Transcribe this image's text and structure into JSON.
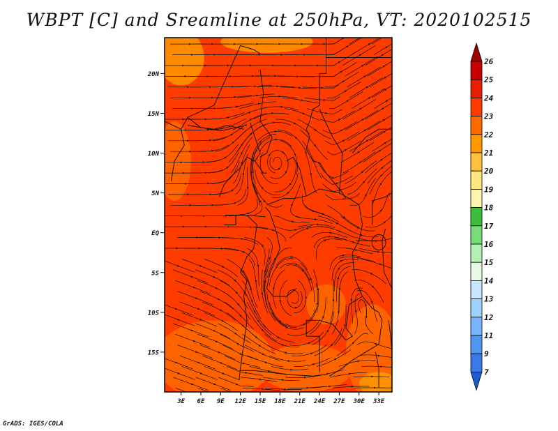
{
  "title": "WBPT [C] and Sreamline at 250hPa, VT: 2020102515",
  "footer": "GrADS: IGES/COLA",
  "map": {
    "variable": "WBPT",
    "units": "C",
    "level_hpa": 250,
    "valid_time": "2020102515",
    "lat_labels": [
      "20N",
      "15N",
      "10N",
      "5N",
      "EQ",
      "5S",
      "10S",
      "15S"
    ],
    "lon_labels": [
      "3E",
      "6E",
      "9E",
      "12E",
      "15E",
      "18E",
      "21E",
      "24E",
      "27E",
      "30E",
      "33E"
    ],
    "lat_range": [
      -20,
      24.5
    ],
    "lon_range": [
      0.5,
      35
    ],
    "colors": {
      "field_main": "#ff3c00",
      "field_warm": "#ff6a00",
      "field_edge": "#ff9800",
      "lines": "#111111"
    }
  },
  "colorbar": {
    "labels": [
      "26",
      "25",
      "24",
      "23",
      "22",
      "21",
      "20",
      "19",
      "18",
      "17",
      "16",
      "15",
      "14",
      "13",
      "12",
      "11",
      "9",
      "7"
    ],
    "colors": [
      "#a00000",
      "#c80000",
      "#e62000",
      "#ff3c00",
      "#ff6a00",
      "#ff9800",
      "#ffbf3f",
      "#ffe680",
      "#fff5b0",
      "#3cbe3c",
      "#78dc78",
      "#b4f0b4",
      "#e6fae6",
      "#c8e6ff",
      "#a0d2ff",
      "#78b4ff",
      "#5096f0",
      "#3c78e6",
      "#1e5ad2"
    ]
  }
}
